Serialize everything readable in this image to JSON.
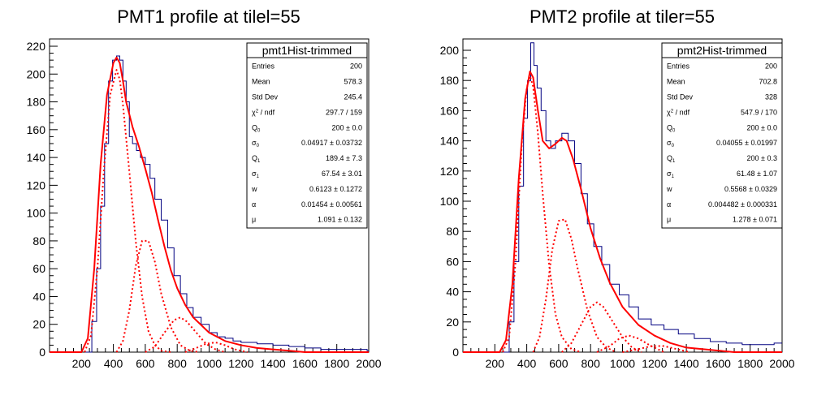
{
  "chart_data": [
    {
      "type": "histogram",
      "title": "PMT1 profile at tilel=55",
      "xlim": [
        0,
        2000
      ],
      "ylim": [
        0,
        220
      ],
      "x_ticks": [
        200,
        400,
        600,
        800,
        1000,
        1200,
        1400,
        1600,
        1800,
        2000
      ],
      "y_ticks": [
        0,
        20,
        40,
        60,
        80,
        100,
        120,
        140,
        160,
        180,
        200,
        220
      ],
      "hist_color": "#000080",
      "fit_color": "#ff0000",
      "hist": {
        "x": [
          225,
          265,
          295,
          320,
          345,
          370,
          395,
          420,
          440,
          460,
          480,
          500,
          520,
          545,
          570,
          600,
          630,
          660,
          700,
          740,
          780,
          820,
          860,
          900,
          950,
          1000,
          1050,
          1100,
          1150,
          1200,
          1300,
          1400,
          1500,
          1600,
          1700,
          1800,
          1900,
          1990
        ],
        "y": [
          0,
          22,
          60,
          105,
          150,
          195,
          210,
          213,
          210,
          195,
          180,
          155,
          150,
          145,
          140,
          135,
          125,
          110,
          95,
          75,
          55,
          42,
          32,
          25,
          20,
          14,
          11,
          10,
          8,
          7,
          6,
          5,
          4,
          3,
          2,
          2,
          2,
          1
        ]
      },
      "fit_total": {
        "x": [
          200,
          240,
          280,
          320,
          360,
          400,
          420,
          440,
          460,
          480,
          520,
          560,
          600,
          640,
          680,
          720,
          760,
          800,
          850,
          900,
          1000,
          1100,
          1200,
          1300,
          1400,
          1500,
          1600
        ],
        "y": [
          0,
          10,
          60,
          135,
          185,
          208,
          212,
          208,
          195,
          180,
          162,
          148,
          132,
          115,
          95,
          76,
          59,
          46,
          34,
          25,
          14,
          8,
          5,
          3,
          2,
          1,
          0
        ]
      },
      "fit_components": [
        {
          "x": [
            220,
            260,
            300,
            340,
            380,
            420,
            440,
            460,
            500,
            540,
            580,
            620,
            660,
            700,
            760
          ],
          "y": [
            0,
            12,
            60,
            130,
            185,
            203,
            196,
            178,
            130,
            80,
            40,
            15,
            5,
            1,
            0
          ]
        },
        {
          "x": [
            420,
            460,
            500,
            540,
            580,
            620,
            660,
            700,
            760,
            820,
            880,
            940
          ],
          "y": [
            0,
            8,
            30,
            62,
            80,
            80,
            65,
            42,
            18,
            5,
            1,
            0
          ]
        },
        {
          "x": [
            600,
            660,
            720,
            780,
            820,
            860,
            920,
            980,
            1040,
            1100
          ],
          "y": [
            0,
            4,
            14,
            23,
            25,
            22,
            14,
            6,
            2,
            0
          ]
        },
        {
          "x": [
            850,
            920,
            980,
            1040,
            1100,
            1160,
            1240
          ],
          "y": [
            0,
            3,
            6,
            7,
            5,
            2,
            0
          ]
        }
      ],
      "stats": {
        "title": "pmt1Hist-trimmed",
        "rows": [
          {
            "name": "Entries",
            "sub": "",
            "suffix": "",
            "value": "200"
          },
          {
            "name": "Mean",
            "sub": "",
            "suffix": "",
            "value": "578.3"
          },
          {
            "name": "Std Dev",
            "sub": "",
            "suffix": "",
            "value": "245.4"
          },
          {
            "name": "χ",
            "sup": "2",
            "suffix": " / ndf",
            "value": "297.7 / 159"
          },
          {
            "name": "Q",
            "sub": "0",
            "suffix": "",
            "value": "200 ± 0.0"
          },
          {
            "name": "σ",
            "sub": "0",
            "suffix": "",
            "value": "0.04917 ± 0.03732"
          },
          {
            "name": "Q",
            "sub": "1",
            "suffix": "",
            "value": "189.4 ± 7.3"
          },
          {
            "name": "σ",
            "sub": "1",
            "suffix": "",
            "value": "67.54 ± 3.01"
          },
          {
            "name": "w",
            "sub": "",
            "suffix": "",
            "value": "0.6123 ± 0.1272"
          },
          {
            "name": "α",
            "sub": "",
            "suffix": "",
            "value": "0.01454 ± 0.00561"
          },
          {
            "name": "μ",
            "sub": "",
            "suffix": "",
            "value": "1.091 ± 0.132"
          }
        ]
      }
    },
    {
      "type": "histogram",
      "title": "PMT2 profile at tiler=55",
      "xlim": [
        0,
        2000
      ],
      "ylim": [
        0,
        215
      ],
      "x_ticks": [
        200,
        400,
        600,
        800,
        1000,
        1200,
        1400,
        1600,
        1800,
        2000
      ],
      "y_ticks": [
        0,
        20,
        40,
        60,
        80,
        100,
        120,
        140,
        160,
        180,
        200
      ],
      "hist_color": "#000080",
      "fit_color": "#ff0000",
      "hist": {
        "x": [
          250,
          290,
          320,
          350,
          380,
          405,
          425,
          445,
          465,
          490,
          520,
          550,
          580,
          620,
          660,
          700,
          740,
          780,
          820,
          870,
          920,
          980,
          1040,
          1100,
          1180,
          1260,
          1350,
          1450,
          1550,
          1650,
          1750,
          1850,
          1950
        ],
        "y": [
          0,
          20,
          60,
          110,
          155,
          180,
          205,
          190,
          175,
          160,
          140,
          135,
          140,
          145,
          140,
          125,
          105,
          85,
          70,
          58,
          45,
          38,
          30,
          22,
          18,
          15,
          12,
          9,
          7,
          6,
          5,
          5,
          6
        ]
      },
      "fit_total": {
        "x": [
          230,
          270,
          310,
          350,
          390,
          420,
          440,
          470,
          500,
          540,
          580,
          620,
          650,
          690,
          740,
          800,
          860,
          920,
          1000,
          1100,
          1200,
          1300,
          1400,
          1500,
          1600,
          1700
        ],
        "y": [
          0,
          8,
          45,
          115,
          168,
          186,
          182,
          160,
          140,
          135,
          138,
          142,
          140,
          128,
          108,
          82,
          62,
          46,
          30,
          18,
          11,
          6,
          3,
          2,
          1,
          0
        ]
      },
      "fit_components": [
        {
          "x": [
            250,
            290,
            330,
            370,
            400,
            420,
            440,
            470,
            500,
            540,
            580,
            620,
            680,
            740
          ],
          "y": [
            0,
            10,
            60,
            140,
            175,
            183,
            176,
            145,
            105,
            58,
            25,
            10,
            2,
            0
          ]
        },
        {
          "x": [
            440,
            480,
            520,
            560,
            600,
            640,
            680,
            720,
            780,
            840,
            900,
            960
          ],
          "y": [
            0,
            10,
            35,
            68,
            87,
            88,
            75,
            55,
            28,
            10,
            3,
            0
          ]
        },
        {
          "x": [
            620,
            680,
            740,
            800,
            840,
            880,
            940,
            1000,
            1060,
            1120
          ],
          "y": [
            0,
            6,
            18,
            30,
            33,
            30,
            20,
            10,
            3,
            0
          ]
        },
        {
          "x": [
            840,
            920,
            980,
            1040,
            1100,
            1180,
            1260
          ],
          "y": [
            0,
            4,
            9,
            11,
            9,
            4,
            0
          ]
        },
        {
          "x": [
            1000,
            1100,
            1180,
            1260,
            1340,
            1420
          ],
          "y": [
            0,
            2,
            4,
            4,
            2,
            0
          ]
        }
      ],
      "stats": {
        "title": "pmt2Hist-trimmed",
        "rows": [
          {
            "name": "Entries",
            "sub": "",
            "suffix": "",
            "value": "200"
          },
          {
            "name": "Mean",
            "sub": "",
            "suffix": "",
            "value": "702.8"
          },
          {
            "name": "Std Dev",
            "sub": "",
            "suffix": "",
            "value": "328"
          },
          {
            "name": "χ",
            "sup": "2",
            "suffix": " / ndf",
            "value": "547.9 / 170"
          },
          {
            "name": "Q",
            "sub": "0",
            "suffix": "",
            "value": "200 ± 0.0"
          },
          {
            "name": "σ",
            "sub": "0",
            "suffix": "",
            "value": "0.04055 ± 0.01997"
          },
          {
            "name": "Q",
            "sub": "1",
            "suffix": "",
            "value": "200 ± 0.3"
          },
          {
            "name": "σ",
            "sub": "1",
            "suffix": "",
            "value": "61.48 ± 1.07"
          },
          {
            "name": "w",
            "sub": "",
            "suffix": "",
            "value": "0.5568 ± 0.0329"
          },
          {
            "name": "α",
            "sub": "",
            "suffix": "",
            "value": "0.004482 ± 0.000331"
          },
          {
            "name": "μ",
            "sub": "",
            "suffix": "",
            "value": "1.278 ± 0.071"
          }
        ]
      }
    }
  ]
}
